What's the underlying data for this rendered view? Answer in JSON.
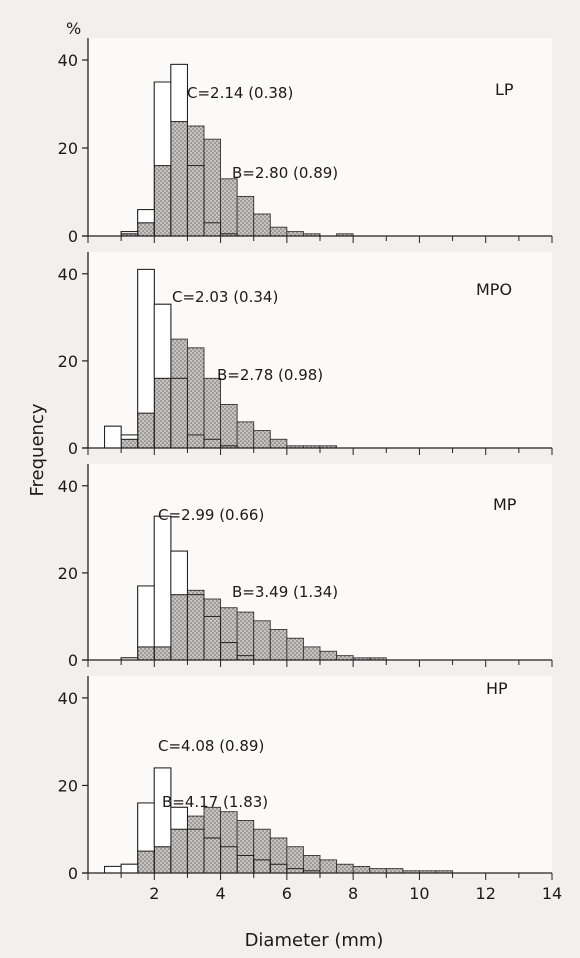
{
  "chart_data": {
    "type": "bar",
    "y_unit_label": "%",
    "xlabel": "Diameter (mm)",
    "ylabel": "Frequency",
    "bin_width_mm": 0.5,
    "xlim": [
      0,
      14
    ],
    "x_ticks": [
      2,
      4,
      6,
      8,
      10,
      12,
      14
    ],
    "ylim": [
      0,
      45
    ],
    "y_ticks": [
      0,
      20,
      40
    ],
    "series_styles": {
      "C": {
        "fill": "#ffffff",
        "stroke": "#333333"
      },
      "B": {
        "fill": "#bfbcbc",
        "hatch": "dotted",
        "stroke": "#333333"
      }
    },
    "panels": [
      {
        "label": "LP",
        "annotations": [
          {
            "text": "C=2.14  (0.38)"
          },
          {
            "text": "B=2.80  (0.89)"
          }
        ],
        "C_bins": [
          [
            0.5,
            0
          ],
          [
            1.0,
            1
          ],
          [
            1.5,
            6
          ],
          [
            2.0,
            35
          ],
          [
            2.5,
            39
          ],
          [
            3.0,
            16
          ],
          [
            3.5,
            3
          ],
          [
            4.0,
            0.5
          ]
        ],
        "B_bins": [
          [
            1.0,
            0.5
          ],
          [
            1.5,
            3
          ],
          [
            2.0,
            16
          ],
          [
            2.5,
            26
          ],
          [
            3.0,
            25
          ],
          [
            3.5,
            22
          ],
          [
            4.0,
            13
          ],
          [
            4.5,
            9
          ],
          [
            5.0,
            5
          ],
          [
            5.5,
            2
          ],
          [
            6.0,
            1
          ],
          [
            6.5,
            0.5
          ],
          [
            7.0,
            0
          ],
          [
            7.5,
            0.5
          ]
        ]
      },
      {
        "label": "MPO",
        "annotations": [
          {
            "text": "C=2.03  (0.34)"
          },
          {
            "text": "B=2.78  (0.98)"
          }
        ],
        "C_bins": [
          [
            0.5,
            5
          ],
          [
            1.0,
            3
          ],
          [
            1.5,
            41
          ],
          [
            2.0,
            33
          ],
          [
            2.5,
            16
          ],
          [
            3.0,
            3
          ],
          [
            3.5,
            2
          ],
          [
            4.0,
            0.5
          ]
        ],
        "B_bins": [
          [
            1.0,
            2
          ],
          [
            1.5,
            8
          ],
          [
            2.0,
            16
          ],
          [
            2.5,
            25
          ],
          [
            3.0,
            23
          ],
          [
            3.5,
            16
          ],
          [
            4.0,
            10
          ],
          [
            4.5,
            6
          ],
          [
            5.0,
            4
          ],
          [
            5.5,
            2
          ],
          [
            6.0,
            0.5
          ],
          [
            6.5,
            0.5
          ],
          [
            7.0,
            0.5
          ]
        ]
      },
      {
        "label": "MP",
        "annotations": [
          {
            "text": "C=2.99  (0.66)"
          },
          {
            "text": "B=3.49  (1.34)"
          }
        ],
        "C_bins": [
          [
            1.0,
            0.5
          ],
          [
            1.5,
            17
          ],
          [
            2.0,
            33
          ],
          [
            2.5,
            25
          ],
          [
            3.0,
            15
          ],
          [
            3.5,
            10
          ],
          [
            4.0,
            4
          ],
          [
            4.5,
            1
          ]
        ],
        "B_bins": [
          [
            1.0,
            0
          ],
          [
            1.5,
            3
          ],
          [
            2.0,
            3
          ],
          [
            2.5,
            15
          ],
          [
            3.0,
            16
          ],
          [
            3.5,
            14
          ],
          [
            4.0,
            12
          ],
          [
            4.5,
            11
          ],
          [
            5.0,
            9
          ],
          [
            5.5,
            7
          ],
          [
            6.0,
            5
          ],
          [
            6.5,
            3
          ],
          [
            7.0,
            2
          ],
          [
            7.5,
            1
          ],
          [
            8.0,
            0.5
          ],
          [
            8.5,
            0.5
          ]
        ]
      },
      {
        "label": "HP",
        "annotations": [
          {
            "text": "C=4.08  (0.89)"
          },
          {
            "text": "B=4.17  (1.83)"
          }
        ],
        "C_bins": [
          [
            0.5,
            1.5
          ],
          [
            1.0,
            2
          ],
          [
            1.5,
            16
          ],
          [
            2.0,
            24
          ],
          [
            2.5,
            15
          ],
          [
            3.0,
            10
          ],
          [
            3.5,
            8
          ],
          [
            4.0,
            6
          ],
          [
            4.5,
            4
          ],
          [
            5.0,
            3
          ],
          [
            5.5,
            2
          ],
          [
            6.0,
            1
          ],
          [
            6.5,
            0.5
          ]
        ],
        "B_bins": [
          [
            1.0,
            0
          ],
          [
            1.5,
            5
          ],
          [
            2.0,
            6
          ],
          [
            2.5,
            10
          ],
          [
            3.0,
            13
          ],
          [
            3.5,
            15
          ],
          [
            4.0,
            14
          ],
          [
            4.5,
            12
          ],
          [
            5.0,
            10
          ],
          [
            5.5,
            8
          ],
          [
            6.0,
            6
          ],
          [
            6.5,
            4
          ],
          [
            7.0,
            3
          ],
          [
            7.5,
            2
          ],
          [
            8.0,
            1.5
          ],
          [
            8.5,
            1
          ],
          [
            9.0,
            1
          ],
          [
            9.5,
            0.5
          ],
          [
            10.0,
            0.5
          ],
          [
            10.5,
            0.5
          ]
        ]
      }
    ]
  }
}
